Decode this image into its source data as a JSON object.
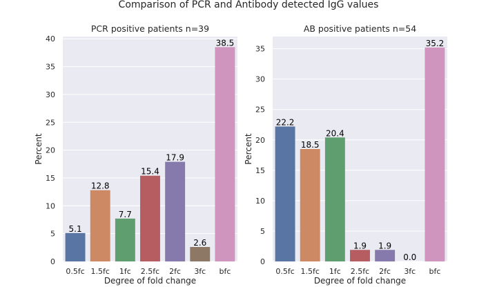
{
  "figure": {
    "title": "Comparison of PCR and Antibody detected IgG values"
  },
  "chart_data": [
    {
      "type": "bar",
      "title": "PCR positive patients n=39",
      "xlabel": "Degree of fold change",
      "ylabel": "Percent",
      "categories": [
        "0.5fc",
        "1.5fc",
        "1fc",
        "2.5fc",
        "2fc",
        "3fc",
        "bfc"
      ],
      "values": [
        5.1,
        12.8,
        7.7,
        15.4,
        17.9,
        2.6,
        38.5
      ],
      "value_labels": [
        "5.1",
        "12.8",
        "7.7",
        "15.4",
        "17.9",
        "2.6",
        "38.5"
      ],
      "colors": [
        "#5975a4",
        "#cc8963",
        "#5f9e6e",
        "#b55d60",
        "#857aab",
        "#8d7866",
        "#d095bf"
      ],
      "ylim": [
        0,
        40.4
      ],
      "yticks": [
        0,
        5,
        10,
        15,
        20,
        25,
        30,
        35,
        40
      ],
      "grid": true,
      "background": "#eaeaf2"
    },
    {
      "type": "bar",
      "title": "AB positive patients n=54",
      "xlabel": "Degree of fold change",
      "ylabel": "Percent",
      "categories": [
        "0.5fc",
        "1.5fc",
        "1fc",
        "2.5fc",
        "2fc",
        "3fc",
        "bfc"
      ],
      "values": [
        22.2,
        18.5,
        20.4,
        1.9,
        1.9,
        0.0,
        35.2
      ],
      "value_labels": [
        "22.2",
        "18.5",
        "20.4",
        "1.9",
        "1.9",
        "0.0",
        "35.2"
      ],
      "colors": [
        "#5975a4",
        "#cc8963",
        "#5f9e6e",
        "#b55d60",
        "#857aab",
        "#8d7866",
        "#d095bf"
      ],
      "ylim": [
        0,
        37
      ],
      "yticks": [
        0,
        5,
        10,
        15,
        20,
        25,
        30,
        35
      ],
      "grid": true,
      "background": "#eaeaf2"
    }
  ]
}
